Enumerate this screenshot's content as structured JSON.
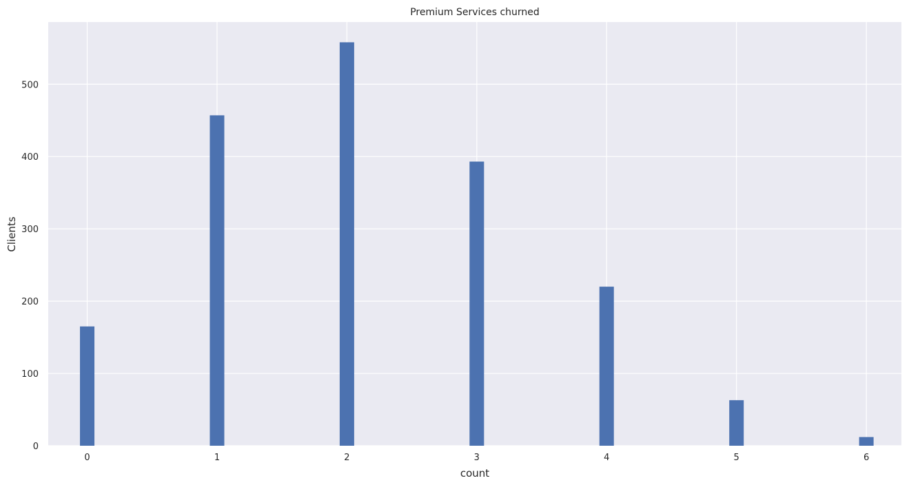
{
  "colors": {
    "background": "#eaeaf2",
    "bar": "#4c72b0",
    "grid": "#ffffff",
    "text": "#262626"
  },
  "chart_data": {
    "type": "bar",
    "title": "Premium Services churned",
    "xlabel": "count",
    "ylabel": "Clients",
    "x": [
      0,
      1,
      2,
      3,
      4,
      5,
      6
    ],
    "values": [
      165,
      457,
      558,
      393,
      220,
      63,
      12
    ],
    "xlim": [
      -0.3,
      6.27
    ],
    "ylim": [
      0,
      586
    ],
    "xticks": [
      0,
      1,
      2,
      3,
      4,
      5,
      6
    ],
    "yticks": [
      0,
      100,
      200,
      300,
      400,
      500
    ],
    "grid": true,
    "legend": "none"
  }
}
